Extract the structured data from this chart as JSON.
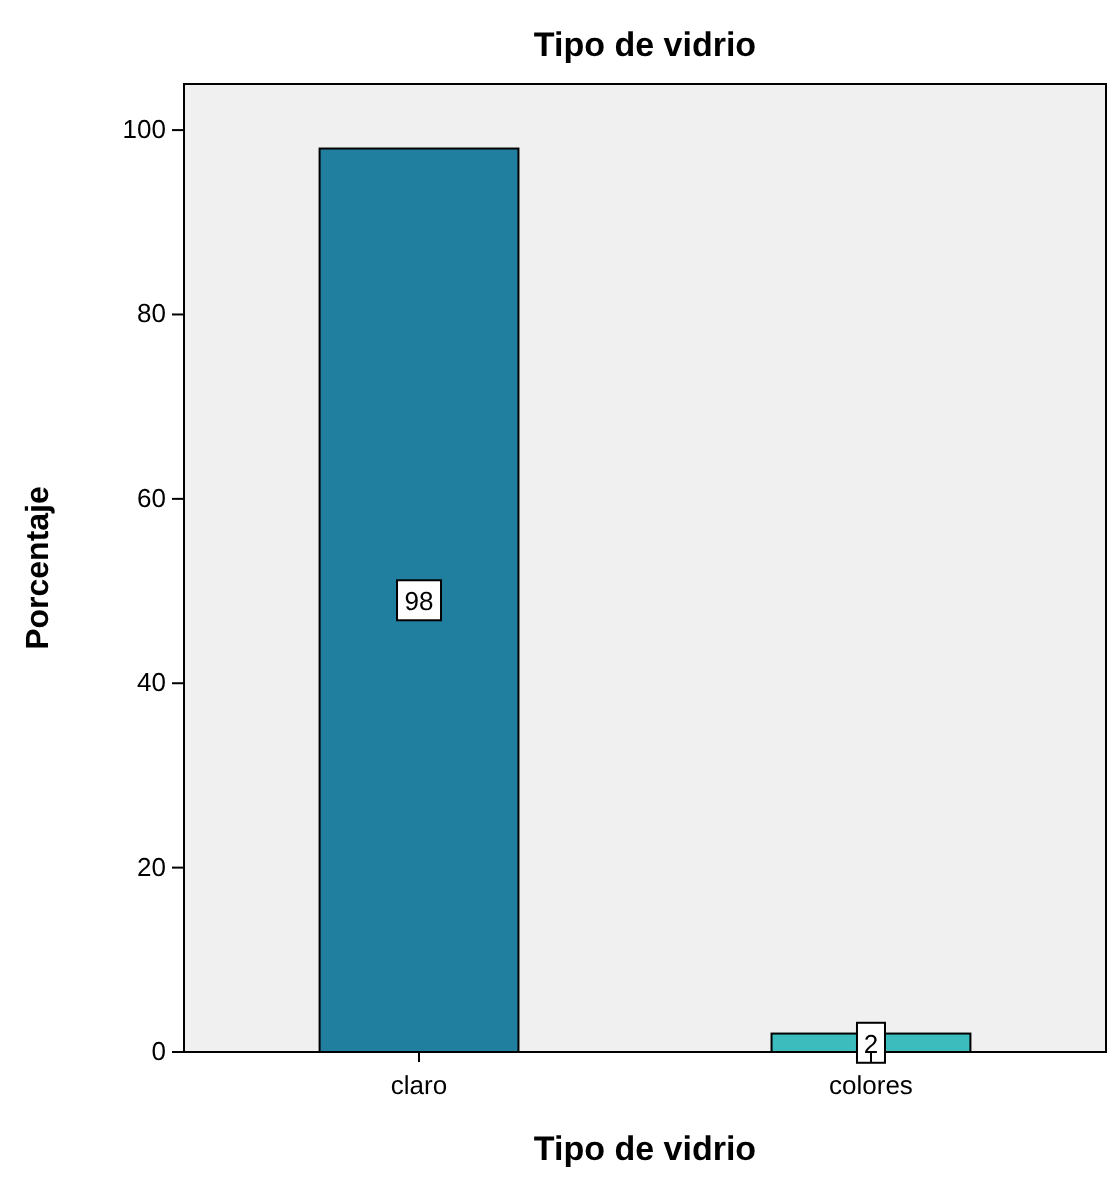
{
  "chart_data": {
    "type": "bar",
    "title": "Tipo de vidrio",
    "xlabel": "Tipo de vidrio",
    "ylabel": "Porcentaje",
    "categories": [
      "claro",
      "colores"
    ],
    "values": [
      98,
      2
    ],
    "colors": [
      "#207f9f",
      "#3cbcbc"
    ],
    "ylim": [
      0,
      105
    ],
    "yticks": [
      0,
      20,
      40,
      60,
      80,
      100
    ],
    "grid": false,
    "data_labels": true
  }
}
